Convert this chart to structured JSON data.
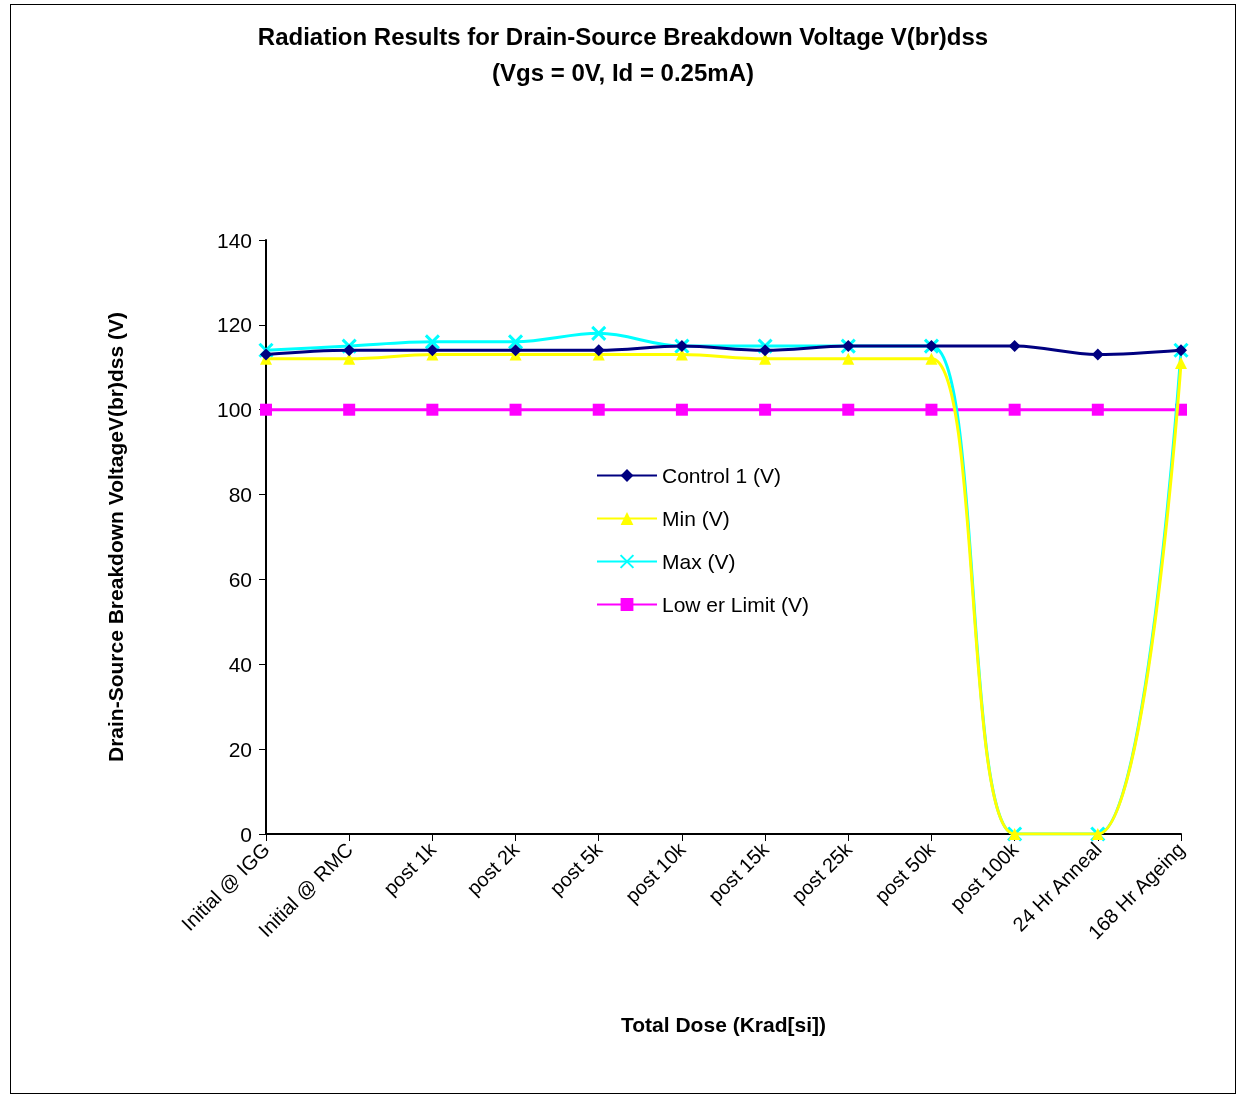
{
  "chart_data": {
    "type": "line",
    "title": "Radiation Results for Drain-Source Breakdown Voltage V(br)dss",
    "subtitle": "(Vgs = 0V, Id = 0.25mA)",
    "xlabel": "Total Dose (Krad[si])",
    "ylabel": "Drain-Source Breakdown VoltageV(br)dss (V)",
    "categories": [
      "Initial @ IGG",
      "Initial @ RMC",
      "post 1k",
      "post 2k",
      "post 5k",
      "post 10k",
      "post 15k",
      "post 25k",
      "post 50k",
      "post 100k",
      "24 Hr Anneal",
      "168 Hr Ageing"
    ],
    "series": [
      {
        "name": "Control 1 (V)",
        "color": "#000080",
        "marker": "diamond",
        "values": [
          113,
          114,
          114,
          114,
          114,
          115,
          114,
          115,
          115,
          115,
          113,
          114
        ]
      },
      {
        "name": "Min (V)",
        "color": "#ffff00",
        "marker": "triangle",
        "values": [
          112,
          112,
          113,
          113,
          113,
          113,
          112,
          112,
          112,
          0,
          0,
          111
        ]
      },
      {
        "name": "Max (V)",
        "color": "#00ffff",
        "marker": "cross",
        "values": [
          114,
          115,
          116,
          116,
          118,
          115,
          115,
          115,
          115,
          0,
          0,
          114
        ]
      },
      {
        "name": "Low er Limit (V)",
        "color": "#ff00ff",
        "marker": "square",
        "values": [
          100,
          100,
          100,
          100,
          100,
          100,
          100,
          100,
          100,
          100,
          100,
          100
        ]
      }
    ],
    "ylim": [
      0,
      140
    ],
    "yticks": [
      0,
      20,
      40,
      60,
      80,
      100,
      120,
      140
    ],
    "grid": false,
    "legend": "center"
  }
}
